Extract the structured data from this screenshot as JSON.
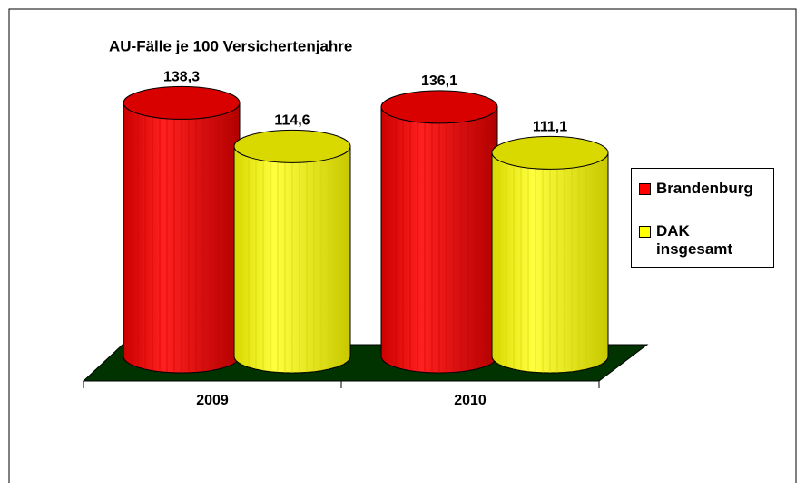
{
  "chart_data": {
    "type": "bar3d",
    "title": "AU-Fälle je 100 Versichertenjahre",
    "categories": [
      "2009",
      "2010"
    ],
    "series": [
      {
        "name": "Brandenburg",
        "color": "#ff0000",
        "values": [
          138.3,
          136.1
        ],
        "value_labels": [
          "138,3",
          "136,1"
        ]
      },
      {
        "name": "DAK insgesamt",
        "color": "#ffff00",
        "values": [
          114.6,
          111.1
        ],
        "value_labels": [
          "114,6",
          "111,1"
        ]
      }
    ],
    "ylim": [
      0,
      140
    ],
    "legend": "right"
  }
}
